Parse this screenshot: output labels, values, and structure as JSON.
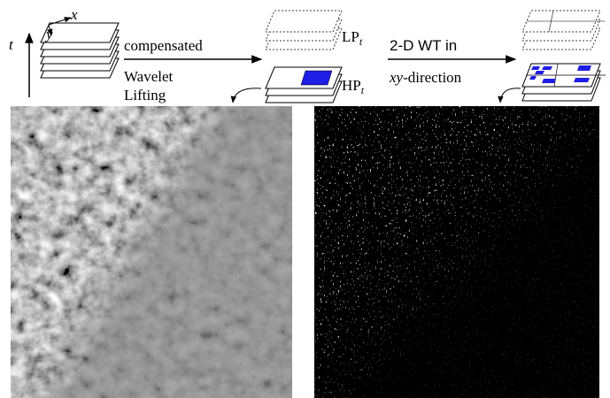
{
  "diagram": {
    "axis_t": "t",
    "axis_x": "x",
    "axis_y": "y",
    "left_arrow_top": "compensated",
    "left_arrow_bottom": [
      "Wavelet",
      "Lifting"
    ],
    "lp_label": {
      "main": "LP",
      "sub": "t"
    },
    "hp_label": {
      "main": "HP",
      "sub": "t"
    },
    "right_arrow_top": "2-D WT in",
    "right_arrow_bottom": {
      "italic": "xy",
      "rest": "-direction"
    }
  }
}
